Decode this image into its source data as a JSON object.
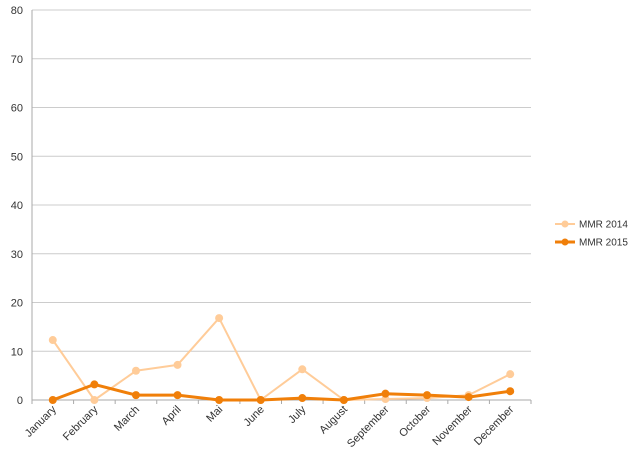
{
  "chart_data": {
    "type": "line",
    "title": "",
    "xlabel": "",
    "ylabel": "",
    "categories": [
      "January",
      "February",
      "March",
      "April",
      "Mai",
      "June",
      "July",
      "August",
      "September",
      "October",
      "November",
      "December"
    ],
    "ylim": [
      0,
      80
    ],
    "yticks": [
      0,
      10,
      20,
      30,
      40,
      50,
      60,
      70,
      80
    ],
    "grid": true,
    "legend_position": "right",
    "series": [
      {
        "name": "MMR 2014",
        "color": "#FFCC99",
        "values": [
          12.3,
          0,
          6,
          7.2,
          16.8,
          0,
          6.3,
          0,
          0.2,
          0.4,
          1,
          5.3
        ]
      },
      {
        "name": "MMR 2015",
        "color": "#F07F09",
        "values": [
          0,
          3.2,
          1,
          1,
          0,
          0,
          0.4,
          0,
          1.3,
          1,
          0.6,
          1.8
        ]
      }
    ]
  }
}
